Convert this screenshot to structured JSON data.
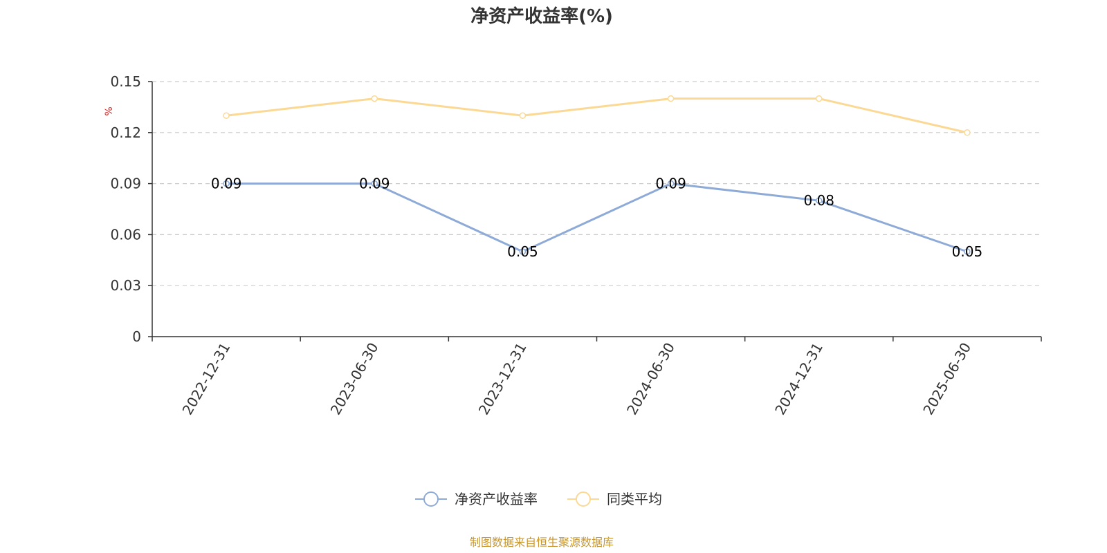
{
  "chart_data": {
    "type": "line",
    "title": "净资产收益率(%)",
    "ylabel": "%",
    "categories": [
      "2022-12-31",
      "2023-06-30",
      "2023-12-31",
      "2024-06-30",
      "2024-12-31",
      "2025-06-30"
    ],
    "series": [
      {
        "name": "净资产收益率",
        "values": [
          0.09,
          0.09,
          0.05,
          0.09,
          0.08,
          0.05
        ],
        "color": "#8eaad7",
        "show_labels": true
      },
      {
        "name": "同类平均",
        "values": [
          0.13,
          0.14,
          0.13,
          0.14,
          0.14,
          0.12
        ],
        "color": "#fbd994",
        "show_labels": false
      }
    ],
    "yticks": [
      "0",
      "0.03",
      "0.06",
      "0.09",
      "0.12",
      "0.15"
    ],
    "ylim": [
      0,
      0.15
    ],
    "grid": true,
    "legend_position": "bottom-center"
  },
  "source": "制图数据来自恒生聚源数据库",
  "colors": {
    "unit": "#e02020",
    "source": "#c8962a",
    "axis": "#333333",
    "grid": "#cccccc"
  }
}
